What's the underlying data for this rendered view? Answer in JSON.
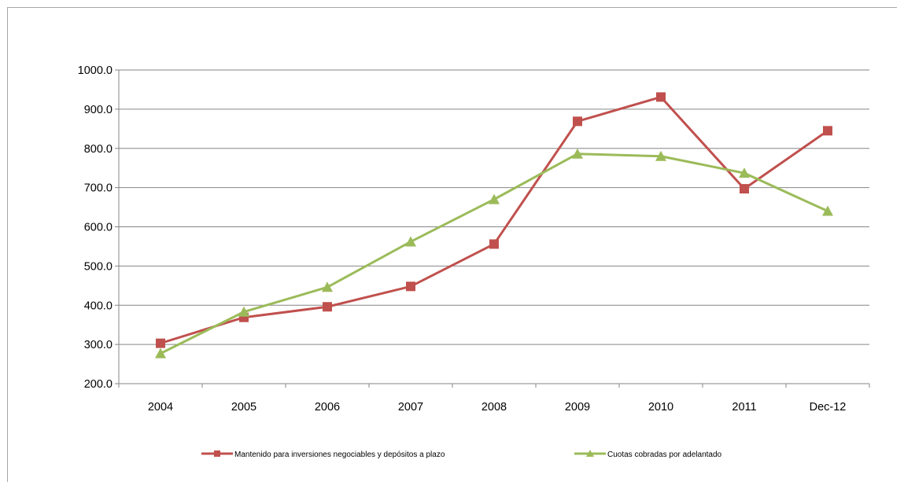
{
  "chart_data": {
    "type": "line",
    "categories": [
      "2004",
      "2005",
      "2006",
      "2007",
      "2008",
      "2009",
      "2010",
      "2011",
      "Dec-12"
    ],
    "series": [
      {
        "name": "Mantenido para inversiones negociables y depósitos a plazo",
        "color": "#c0504d",
        "marker": "square",
        "values": [
          303,
          369,
          396,
          448,
          556,
          869,
          931,
          697,
          845
        ]
      },
      {
        "name": "Cuotas cobradas por adelantado",
        "color": "#9bbb59",
        "marker": "triangle",
        "values": [
          277,
          383,
          446,
          562,
          670,
          786,
          780,
          737,
          640
        ]
      }
    ],
    "ylim": [
      200,
      1000
    ],
    "yticks": [
      "200.0",
      "300.0",
      "400.0",
      "500.0",
      "600.0",
      "700.0",
      "800.0",
      "900.0",
      "1000.0"
    ],
    "grid": true,
    "legend": "bottom"
  }
}
